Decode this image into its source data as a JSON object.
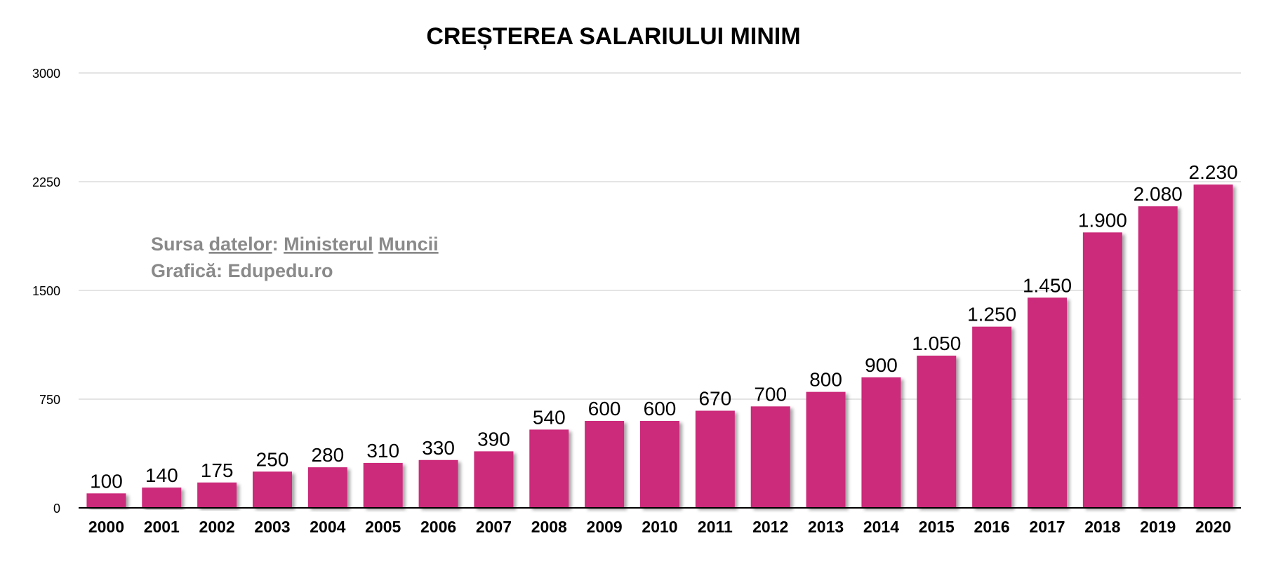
{
  "chart_data": {
    "type": "bar",
    "title": "CREȘTEREA SALARIULUI MINIM",
    "categories": [
      "2000",
      "2001",
      "2002",
      "2003",
      "2004",
      "2005",
      "2006",
      "2007",
      "2008",
      "2009",
      "2010",
      "2011",
      "2012",
      "2013",
      "2014",
      "2015",
      "2016",
      "2017",
      "2018",
      "2019",
      "2020"
    ],
    "values": [
      100,
      140,
      175,
      250,
      280,
      310,
      330,
      390,
      540,
      600,
      600,
      670,
      700,
      800,
      900,
      1050,
      1250,
      1450,
      1900,
      2080,
      2230
    ],
    "value_labels": [
      "100",
      "140",
      "175",
      "250",
      "280",
      "310",
      "330",
      "390",
      "540",
      "600",
      "600",
      "670",
      "700",
      "800",
      "900",
      "1.050",
      "1.250",
      "1.450",
      "1.900",
      "2.080",
      "2.230"
    ],
    "yticks": [
      "0",
      "750",
      "1500",
      "2250",
      "3000"
    ],
    "ylim": [
      0,
      3000
    ],
    "grid": true,
    "xlabel": "",
    "ylabel": "",
    "bar_color": "#cc2a7a",
    "annotation": {
      "source_prefix": "Sursa",
      "source_word1": "datelor",
      "source_colon": ":",
      "source_word2": "Ministerul",
      "source_word3": "Muncii",
      "credit": "Grafică: Edupedu.ro"
    }
  }
}
